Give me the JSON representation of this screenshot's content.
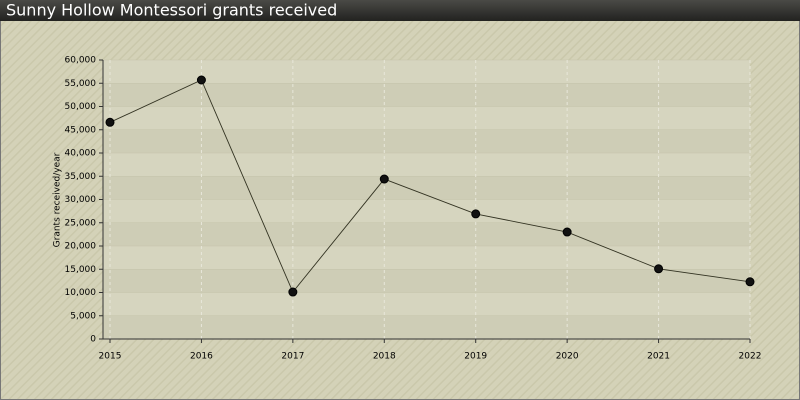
{
  "chart_data": {
    "type": "line",
    "title": "Sunny Hollow Montessori grants received",
    "y_label": "Grants received/year",
    "x": [
      2015,
      2016,
      2017,
      2018,
      2019,
      2020,
      2021,
      2022
    ],
    "series": [
      {
        "name": "Grants received",
        "color": "#333322",
        "values": [
          46600,
          55700,
          10100,
          34400,
          26900,
          23000,
          15100,
          12300
        ]
      }
    ],
    "xlim": [
      2015,
      2022
    ],
    "xticks": [
      2015,
      2016,
      2017,
      2018,
      2019,
      2020,
      2021,
      2022
    ],
    "ylim": [
      0,
      60000
    ],
    "yticks": [
      0,
      {
        "value": 5000,
        "label": "5,000"
      },
      {
        "value": 10000,
        "label": "10,000"
      },
      {
        "value": 15000,
        "label": "15,000"
      },
      {
        "value": 20000,
        "label": "20,000"
      },
      {
        "value": 25000,
        "label": "25,000"
      },
      {
        "value": 30000,
        "label": "30,000"
      },
      {
        "value": 35000,
        "label": "35,000"
      },
      {
        "value": 40000,
        "label": "40,000"
      },
      {
        "value": 45000,
        "label": "45,000"
      },
      {
        "value": 50000,
        "label": "50,000"
      },
      {
        "value": 55000,
        "label": "55,000"
      },
      {
        "value": 60000,
        "label": "60,000"
      }
    ],
    "grid": true
  }
}
